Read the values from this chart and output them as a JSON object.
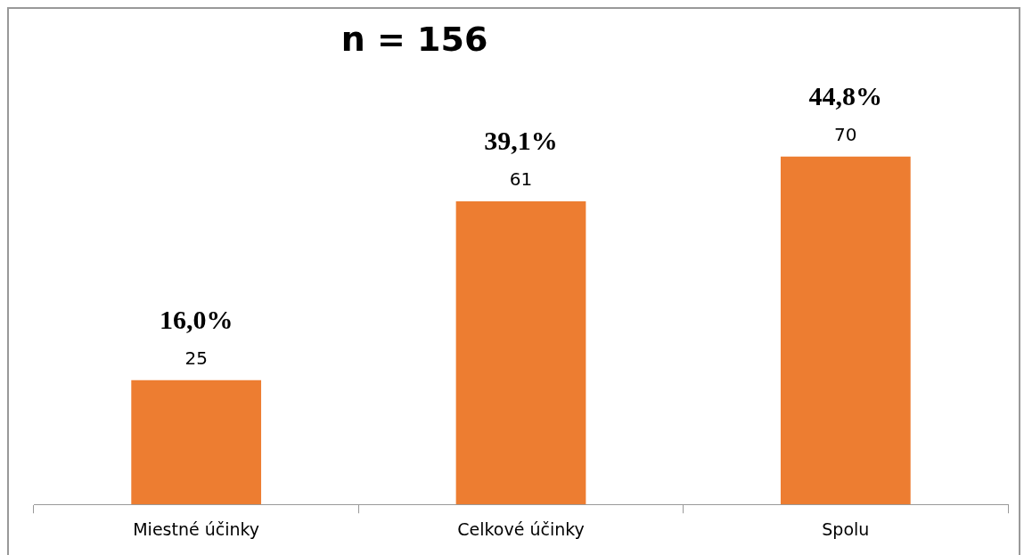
{
  "chart_data": {
    "type": "bar",
    "title": "n = 156",
    "categories": [
      "Miestné účinky",
      "Celkové účinky",
      "Spolu"
    ],
    "values": [
      25,
      61,
      70
    ],
    "color": "#ed7d31",
    "data_labels": true,
    "grid": false,
    "legend": false,
    "annotations": [
      {
        "text": "16,0%",
        "x": "Miestné účinky",
        "y": 25
      },
      {
        "text": "39,1%",
        "x": "Celkové účinky",
        "y": 61
      },
      {
        "text": "44,8%",
        "x": "Spolu",
        "y": 70
      }
    ]
  }
}
